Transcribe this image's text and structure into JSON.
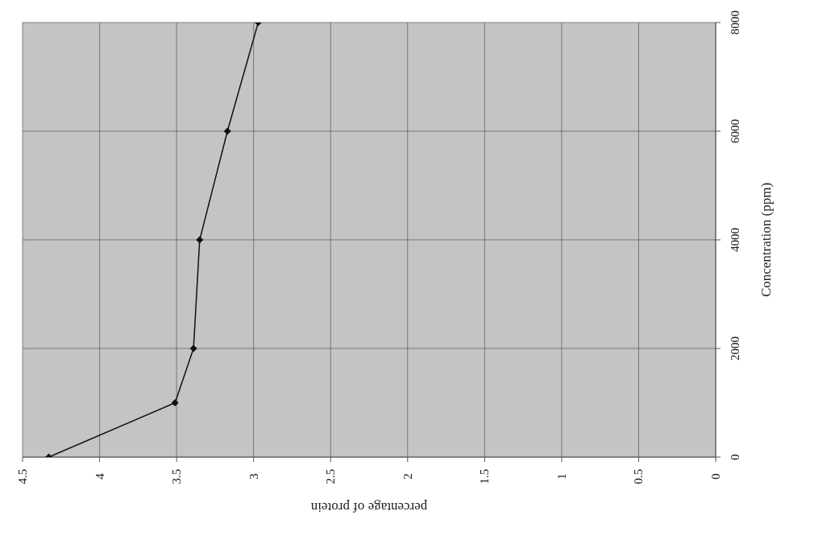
{
  "chart_data": {
    "type": "line",
    "xlabel": "percentage of protein",
    "ylabel": "Concentration (ppm)",
    "series": [
      {
        "color": "#111111",
        "x": [
          4.33,
          3.51,
          3.39,
          3.35,
          3.17,
          2.97
        ],
        "values": [
          0,
          1000,
          2000,
          4000,
          6000,
          8000
        ]
      }
    ],
    "xlim": [
      4.5,
      0
    ],
    "xticks": [
      0,
      0.5,
      1,
      1.5,
      2,
      2.5,
      3,
      3.5,
      4,
      4.5
    ],
    "ylim": [
      0,
      8000
    ],
    "yticks": [
      0,
      2000,
      4000,
      6000,
      8000
    ],
    "grid": true,
    "marker": "diamond",
    "line_style": "solid"
  }
}
